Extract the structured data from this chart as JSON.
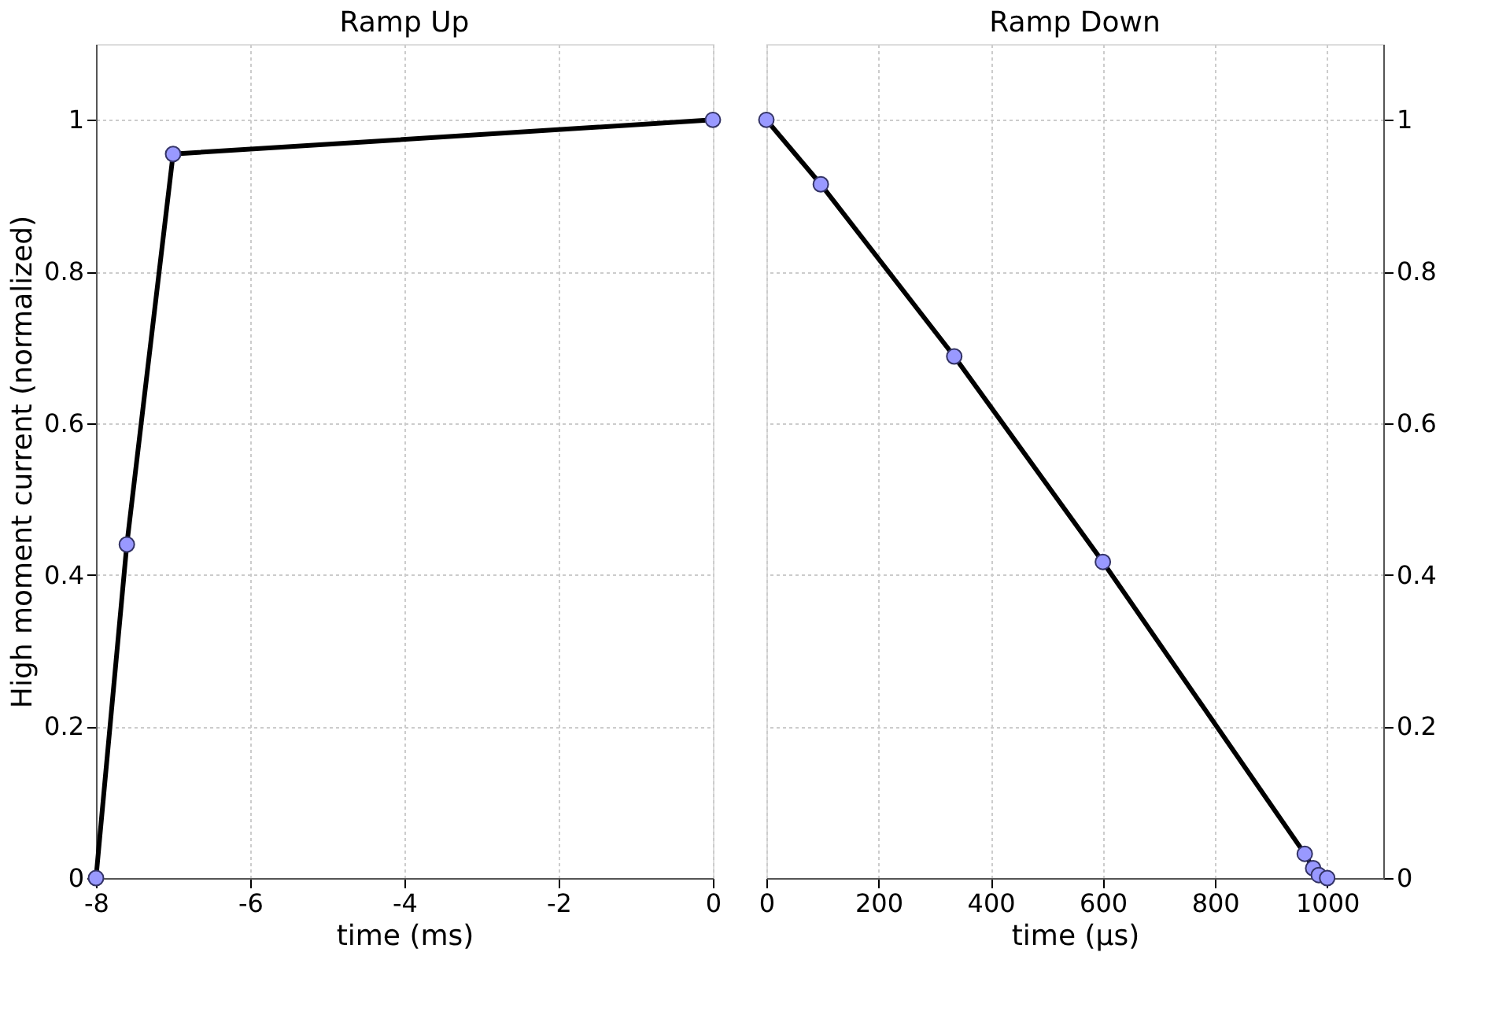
{
  "chart_data": [
    {
      "type": "line",
      "title": "Ramp Up",
      "xlabel": "time (ms)",
      "ylabel": "High moment current (normalized)",
      "x": [
        -8,
        -7.6,
        -7,
        0
      ],
      "series": [
        {
          "color": "#000000",
          "values": [
            0,
            0.44,
            0.955,
            1
          ]
        }
      ],
      "xlim": [
        -8,
        0
      ],
      "xticks": [
        -8,
        -6,
        -4,
        -2,
        0
      ],
      "ylim": [
        0,
        1.1
      ],
      "yticks": [
        0,
        0.2,
        0.4,
        0.6,
        0.8,
        1
      ],
      "grid": true,
      "marker": "circle",
      "line_style": "solid"
    },
    {
      "type": "line",
      "title": "Ramp Down",
      "xlabel": "time (µs)",
      "x": [
        0,
        97,
        335,
        600,
        960,
        975,
        985,
        1000
      ],
      "series": [
        {
          "color": "#000000",
          "axis": "y2",
          "values": [
            1,
            0.915,
            0.688,
            0.417,
            0.032,
            0.013,
            0.004,
            0
          ]
        }
      ],
      "xlim": [
        0,
        1100
      ],
      "xticks": [
        0,
        200,
        400,
        600,
        800,
        1000
      ],
      "y2lim": [
        0,
        1.1
      ],
      "y2ticks": [
        0,
        0.2,
        0.4,
        0.6,
        0.8,
        1
      ],
      "grid": true,
      "marker": "circle",
      "line_style": "solid"
    }
  ]
}
